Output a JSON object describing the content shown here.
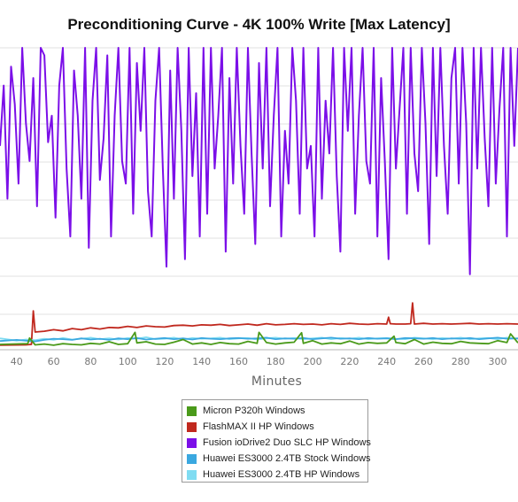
{
  "chart_data": {
    "type": "line",
    "title": "Preconditioning Curve - 4K 100% Write [Max Latency]",
    "xlabel": "Minutes",
    "ylabel": "",
    "x_ticks": [
      40,
      60,
      80,
      100,
      120,
      140,
      160,
      180,
      200,
      220,
      240,
      260,
      280,
      300
    ],
    "xlim": [
      31,
      311
    ],
    "grid": true,
    "legend_position": "bottom",
    "colors": {
      "micron": "#4a9a1a",
      "flashmax": "#c0281e",
      "fusion": "#7b0fe8",
      "huawei_stock": "#3aa8e0",
      "huawei_hp": "#7fdcf2"
    },
    "series": [
      {
        "name": "Micron P320h Windows",
        "color": "#4a9a1a",
        "x": [
          31,
          46,
          47,
          50,
          55,
          60,
          65,
          70,
          75,
          80,
          85,
          90,
          95,
          100,
          104,
          105,
          110,
          115,
          120,
          125,
          130,
          135,
          140,
          145,
          150,
          155,
          160,
          165,
          170,
          171,
          175,
          180,
          185,
          190,
          194,
          195,
          200,
          205,
          210,
          215,
          220,
          225,
          230,
          235,
          240,
          244,
          245,
          250,
          255,
          260,
          265,
          270,
          275,
          280,
          285,
          290,
          295,
          300,
          305,
          307,
          311
        ],
        "y": [
          1.4,
          1.6,
          3.1,
          1.3,
          1.5,
          1.2,
          1.6,
          1.4,
          1.3,
          1.7,
          1.5,
          2.1,
          1.4,
          1.6,
          4.6,
          1.8,
          2.1,
          1.5,
          1.4,
          2.0,
          2.7,
          1.5,
          1.8,
          1.4,
          1.9,
          1.6,
          1.5,
          2.2,
          1.7,
          4.6,
          1.9,
          1.5,
          1.8,
          2.0,
          4.5,
          1.7,
          2.4,
          1.5,
          1.8,
          1.6,
          2.3,
          1.5,
          1.9,
          1.7,
          1.8,
          3.6,
          1.9,
          1.6,
          2.7,
          1.5,
          2.0,
          1.7,
          1.6,
          2.2,
          1.8,
          1.7,
          1.6,
          2.4,
          1.9,
          4.2,
          1.8
        ]
      },
      {
        "name": "FlashMAX II HP Windows",
        "color": "#c0281e",
        "x": [
          31,
          45,
          48,
          49,
          50,
          55,
          60,
          65,
          70,
          75,
          80,
          85,
          90,
          95,
          100,
          105,
          110,
          115,
          120,
          125,
          130,
          135,
          140,
          145,
          150,
          155,
          160,
          165,
          170,
          175,
          180,
          185,
          190,
          195,
          200,
          205,
          210,
          215,
          220,
          225,
          230,
          235,
          240,
          241,
          242,
          245,
          250,
          253,
          254,
          255,
          260,
          265,
          270,
          275,
          280,
          285,
          290,
          295,
          300,
          305,
          311
        ],
        "y": [
          1.2,
          1.3,
          1.4,
          10.3,
          4.7,
          4.9,
          5.3,
          5.0,
          5.6,
          5.3,
          5.8,
          5.5,
          5.9,
          5.8,
          6.2,
          5.9,
          6.3,
          6.1,
          6.0,
          6.4,
          6.5,
          6.3,
          6.6,
          6.5,
          6.7,
          6.4,
          6.6,
          6.8,
          6.5,
          6.9,
          6.6,
          6.7,
          6.9,
          6.7,
          6.8,
          6.6,
          6.9,
          6.7,
          7.0,
          6.8,
          6.7,
          6.9,
          6.8,
          8.6,
          6.9,
          6.8,
          6.8,
          6.9,
          12.4,
          6.8,
          7.0,
          6.8,
          6.9,
          6.8,
          6.9,
          7.0,
          6.8,
          6.9,
          6.8,
          6.9,
          6.8
        ]
      },
      {
        "name": "Fusion ioDrive2 Duo SLC HP Windows",
        "color": "#7b0fe8",
        "x": [
          31,
          33,
          35,
          37,
          39,
          41,
          43,
          45,
          47,
          49,
          51,
          53,
          55,
          57,
          59,
          61,
          63,
          65,
          67,
          69,
          71,
          73,
          75,
          77,
          79,
          81,
          83,
          85,
          87,
          89,
          91,
          93,
          95,
          97,
          99,
          101,
          103,
          105,
          107,
          109,
          111,
          113,
          115,
          117,
          119,
          121,
          123,
          125,
          127,
          129,
          131,
          133,
          135,
          137,
          139,
          141,
          143,
          145,
          147,
          149,
          151,
          153,
          155,
          157,
          159,
          161,
          163,
          165,
          167,
          169,
          171,
          173,
          175,
          177,
          179,
          181,
          183,
          185,
          187,
          189,
          191,
          193,
          195,
          197,
          199,
          201,
          203,
          205,
          207,
          209,
          211,
          213,
          215,
          217,
          219,
          221,
          223,
          225,
          227,
          229,
          231,
          233,
          235,
          237,
          239,
          241,
          243,
          245,
          247,
          249,
          251,
          253,
          255,
          257,
          259,
          261,
          263,
          265,
          267,
          269,
          271,
          273,
          275,
          277,
          279,
          281,
          283,
          285,
          287,
          289,
          291,
          293,
          295,
          297,
          299,
          301,
          303,
          305,
          307,
          309,
          311
        ],
        "y": [
          54,
          70,
          40,
          75,
          65,
          44,
          80,
          60,
          50,
          72,
          38,
          80,
          78,
          55,
          62,
          35,
          70,
          80,
          48,
          30,
          74,
          62,
          40,
          80,
          27,
          66,
          80,
          45,
          56,
          78,
          30,
          62,
          80,
          50,
          44,
          80,
          36,
          76,
          58,
          80,
          42,
          30,
          66,
          80,
          48,
          22,
          74,
          40,
          80,
          58,
          24,
          80,
          46,
          68,
          30,
          80,
          36,
          80,
          48,
          62,
          80,
          26,
          72,
          44,
          80,
          54,
          36,
          80,
          52,
          28,
          76,
          48,
          80,
          38,
          62,
          80,
          30,
          58,
          44,
          80,
          66,
          36,
          80,
          48,
          54,
          30,
          80,
          40,
          66,
          52,
          80,
          46,
          26,
          80,
          58,
          80,
          36,
          62,
          80,
          50,
          44,
          80,
          30,
          72,
          50,
          24,
          80,
          48,
          64,
          80,
          36,
          80,
          52,
          42,
          80,
          60,
          28,
          80,
          46,
          80,
          54,
          36,
          72,
          80,
          44,
          80,
          60,
          20,
          80,
          48,
          80,
          56,
          38,
          80,
          44,
          64,
          80,
          30,
          80,
          54,
          80
        ]
      },
      {
        "name": "Huawei ES3000 2.4TB Stock Windows",
        "color": "#3aa8e0",
        "x": [
          31,
          40,
          45,
          50,
          55,
          60,
          65,
          70,
          75,
          80,
          85,
          90,
          95,
          100,
          105,
          110,
          115,
          120,
          125,
          130,
          135,
          140,
          145,
          150,
          155,
          160,
          165,
          170,
          175,
          180,
          185,
          190,
          195,
          200,
          205,
          210,
          215,
          220,
          225,
          230,
          235,
          240,
          245,
          250,
          255,
          260,
          265,
          270,
          275,
          280,
          285,
          290,
          295,
          300,
          305,
          311
        ],
        "y": [
          2.3,
          2.6,
          2.4,
          2.2,
          2.6,
          2.9,
          2.8,
          2.6,
          3.0,
          2.7,
          2.9,
          2.6,
          3.0,
          2.8,
          3.1,
          2.7,
          2.9,
          3.1,
          2.8,
          3.0,
          2.7,
          3.1,
          2.9,
          2.8,
          3.0,
          3.1,
          2.9,
          3.0,
          3.2,
          2.8,
          3.0,
          2.9,
          3.1,
          2.8,
          3.0,
          3.2,
          2.9,
          3.0,
          2.8,
          3.1,
          2.9,
          3.0,
          2.8,
          3.1,
          3.0,
          2.9,
          3.1,
          2.8,
          3.0,
          2.9,
          3.1,
          2.8,
          3.0,
          3.2,
          2.9,
          3.0
        ]
      },
      {
        "name": "Huawei ES3000 2.4TB HP Windows",
        "color": "#7fdcf2",
        "x": [
          31,
          40,
          45,
          50,
          55,
          60,
          65,
          70,
          75,
          80,
          85,
          90,
          95,
          100,
          105,
          110,
          115,
          120,
          125,
          130,
          135,
          140,
          145,
          150,
          155,
          160,
          165,
          170,
          175,
          180,
          185,
          190,
          195,
          200,
          205,
          210,
          215,
          220,
          225,
          230,
          235,
          240,
          245,
          250,
          255,
          260,
          265,
          270,
          275,
          280,
          285,
          290,
          295,
          300,
          305,
          311
        ],
        "y": [
          3.0,
          2.4,
          2.7,
          2.5,
          2.9,
          2.6,
          3.1,
          2.7,
          2.9,
          3.2,
          2.8,
          3.0,
          2.7,
          3.1,
          2.9,
          3.3,
          2.8,
          2.9,
          3.2,
          2.7,
          3.1,
          2.9,
          3.0,
          3.2,
          2.8,
          3.0,
          3.1,
          2.7,
          3.0,
          3.2,
          2.9,
          3.1,
          2.8,
          3.0,
          3.2,
          2.8,
          3.1,
          2.9,
          3.2,
          2.8,
          3.0,
          3.1,
          2.9,
          2.8,
          3.2,
          3.0,
          2.8,
          3.1,
          2.9,
          3.2,
          2.8,
          3.0,
          3.1,
          2.8,
          3.2,
          2.9
        ]
      }
    ]
  }
}
